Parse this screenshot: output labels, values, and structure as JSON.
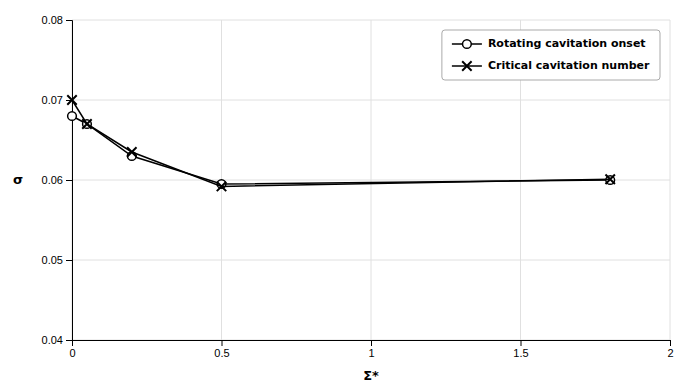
{
  "chart_data": {
    "type": "line",
    "xlabel": "Σ*",
    "ylabel": "σ",
    "x": [
      0.0,
      0.05,
      0.2,
      0.5,
      1.8
    ],
    "series": [
      {
        "name": "Rotating cavitation onset",
        "color": "#000000",
        "marker": "circle",
        "values": [
          0.068,
          0.067,
          0.063,
          0.0595,
          0.06
        ]
      },
      {
        "name": "Critical cavitation number",
        "color": "#000000",
        "marker": "x",
        "values": [
          0.07,
          0.067,
          0.0635,
          0.0592,
          0.0601
        ]
      }
    ],
    "xlim": [
      0,
      2
    ],
    "ylim": [
      0.04,
      0.08
    ],
    "xticks": [
      0,
      0.5,
      1,
      1.5,
      2
    ],
    "yticks": [
      0.04,
      0.05,
      0.06,
      0.07,
      0.08
    ],
    "grid": true,
    "legend": "upper right"
  }
}
